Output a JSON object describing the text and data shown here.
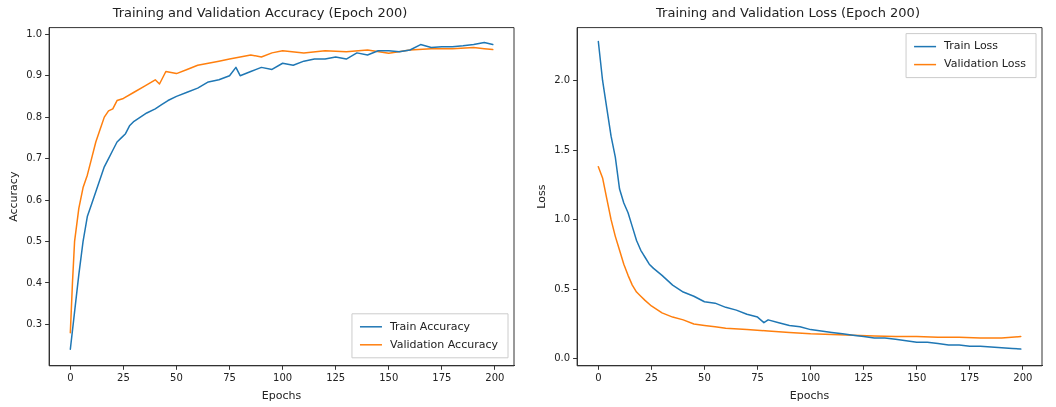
{
  "chart_data": [
    {
      "type": "line",
      "title": "Training and Validation Accuracy (Epoch 200)",
      "xlabel": "Epochs",
      "ylabel": "Accuracy",
      "xlim": [
        -10,
        209
      ],
      "xticks": [
        0,
        25,
        50,
        75,
        100,
        125,
        150,
        175,
        200
      ],
      "ylim": [
        0.2,
        1.016
      ],
      "yticks": [
        {
          "value": 0.3,
          "label": "0.3"
        },
        {
          "value": 0.4,
          "label": "0.4"
        },
        {
          "value": 0.5,
          "label": "0.5"
        },
        {
          "value": 0.6,
          "label": "0.6"
        },
        {
          "value": 0.7,
          "label": "0.7"
        },
        {
          "value": 0.8,
          "label": "0.8"
        },
        {
          "value": 0.9,
          "label": "0.9"
        },
        {
          "value": 1,
          "label": "1.0"
        }
      ],
      "grid": false,
      "legend": "bottom right",
      "marker": "none",
      "line_style": "solid",
      "series": [
        {
          "name": "Train Accuracy",
          "color": "#1f77b4",
          "x": [
            0,
            2,
            4,
            6,
            8,
            10,
            12,
            14,
            16,
            18,
            20,
            22,
            24,
            26,
            28,
            30,
            33,
            36,
            40,
            43,
            46,
            50,
            55,
            60,
            65,
            70,
            75,
            78,
            80,
            85,
            90,
            95,
            100,
            105,
            110,
            115,
            120,
            125,
            130,
            135,
            140,
            145,
            150,
            155,
            160,
            165,
            170,
            175,
            180,
            185,
            190,
            195,
            199
          ],
          "values": [
            0.24,
            0.33,
            0.42,
            0.5,
            0.56,
            0.59,
            0.62,
            0.65,
            0.68,
            0.7,
            0.72,
            0.74,
            0.75,
            0.76,
            0.78,
            0.79,
            0.8,
            0.81,
            0.82,
            0.83,
            0.84,
            0.85,
            0.86,
            0.87,
            0.885,
            0.89,
            0.9,
            0.92,
            0.9,
            0.91,
            0.92,
            0.915,
            0.93,
            0.925,
            0.935,
            0.94,
            0.94,
            0.945,
            0.94,
            0.955,
            0.95,
            0.96,
            0.96,
            0.958,
            0.962,
            0.975,
            0.968,
            0.97,
            0.97,
            0.972,
            0.975,
            0.98,
            0.975
          ]
        },
        {
          "name": "Validation Accuracy",
          "color": "#ff7f0e",
          "x": [
            0,
            1,
            2,
            4,
            6,
            8,
            10,
            12,
            14,
            16,
            18,
            20,
            22,
            25,
            30,
            35,
            40,
            42,
            45,
            50,
            55,
            60,
            65,
            70,
            75,
            80,
            85,
            90,
            95,
            100,
            110,
            120,
            130,
            140,
            150,
            160,
            170,
            180,
            190,
            195,
            199
          ],
          "values": [
            0.28,
            0.4,
            0.5,
            0.58,
            0.63,
            0.66,
            0.7,
            0.74,
            0.77,
            0.8,
            0.815,
            0.82,
            0.84,
            0.845,
            0.86,
            0.875,
            0.89,
            0.88,
            0.91,
            0.905,
            0.915,
            0.925,
            0.93,
            0.935,
            0.94,
            0.945,
            0.95,
            0.945,
            0.955,
            0.96,
            0.955,
            0.96,
            0.958,
            0.962,
            0.954,
            0.962,
            0.965,
            0.965,
            0.968,
            0.965,
            0.963
          ]
        }
      ]
    },
    {
      "type": "line",
      "title": "Training and Validation Loss (Epoch 200)",
      "xlabel": "Epochs",
      "ylabel": "Loss",
      "xlim": [
        -10,
        209
      ],
      "xticks": [
        0,
        25,
        50,
        75,
        100,
        125,
        150,
        175,
        200
      ],
      "ylim": [
        -0.05,
        2.38
      ],
      "yticks": [
        {
          "value": 0,
          "label": "0.0"
        },
        {
          "value": 0.5,
          "label": "0.5"
        },
        {
          "value": 1,
          "label": "1.0"
        },
        {
          "value": 1.5,
          "label": "1.5"
        },
        {
          "value": 2,
          "label": "2.0"
        }
      ],
      "grid": false,
      "legend": "top right",
      "marker": "none",
      "line_style": "solid",
      "series": [
        {
          "name": "Train Loss",
          "color": "#1f77b4",
          "x": [
            0,
            2,
            4,
            6,
            8,
            10,
            12,
            14,
            16,
            18,
            20,
            22,
            24,
            26,
            30,
            35,
            40,
            45,
            50,
            55,
            60,
            65,
            70,
            75,
            78,
            80,
            85,
            90,
            95,
            100,
            105,
            110,
            115,
            120,
            125,
            130,
            135,
            140,
            145,
            150,
            155,
            160,
            165,
            170,
            175,
            180,
            185,
            190,
            195,
            199
          ],
          "values": [
            2.28,
            2.0,
            1.8,
            1.6,
            1.45,
            1.22,
            1.12,
            1.05,
            0.95,
            0.85,
            0.78,
            0.73,
            0.68,
            0.65,
            0.6,
            0.53,
            0.48,
            0.45,
            0.41,
            0.4,
            0.37,
            0.35,
            0.32,
            0.3,
            0.26,
            0.28,
            0.26,
            0.24,
            0.23,
            0.21,
            0.2,
            0.19,
            0.18,
            0.17,
            0.16,
            0.15,
            0.15,
            0.14,
            0.13,
            0.12,
            0.12,
            0.11,
            0.1,
            0.1,
            0.09,
            0.09,
            0.085,
            0.08,
            0.075,
            0.07
          ]
        },
        {
          "name": "Validation Loss",
          "color": "#ff7f0e",
          "x": [
            0,
            2,
            4,
            6,
            8,
            10,
            12,
            14,
            16,
            18,
            20,
            22,
            25,
            30,
            35,
            40,
            45,
            50,
            55,
            60,
            70,
            80,
            90,
            100,
            110,
            120,
            130,
            140,
            150,
            160,
            170,
            180,
            190,
            199
          ],
          "values": [
            1.38,
            1.3,
            1.15,
            1.0,
            0.88,
            0.78,
            0.68,
            0.6,
            0.53,
            0.48,
            0.45,
            0.42,
            0.38,
            0.33,
            0.3,
            0.28,
            0.25,
            0.24,
            0.23,
            0.22,
            0.21,
            0.2,
            0.19,
            0.18,
            0.175,
            0.17,
            0.165,
            0.16,
            0.16,
            0.155,
            0.155,
            0.15,
            0.15,
            0.16
          ]
        }
      ]
    }
  ]
}
